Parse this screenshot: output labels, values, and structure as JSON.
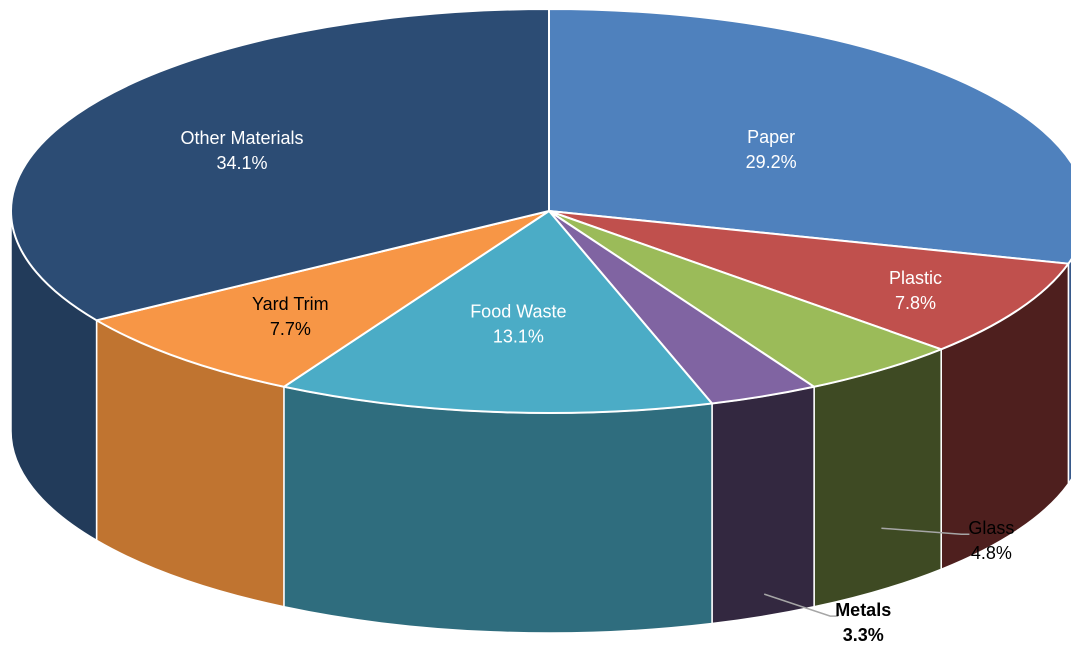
{
  "chart_data": {
    "type": "pie",
    "style": "3d-tilted",
    "title": "",
    "slices": [
      {
        "name": "Paper",
        "value": 29.2,
        "value_label": "29.2%",
        "color": "#4F81BD",
        "side_color": "#37598A"
      },
      {
        "name": "Plastic",
        "value": 7.8,
        "value_label": "7.8%",
        "color": "#C0504D",
        "side_color": "#4E1F1E"
      },
      {
        "name": "Glass",
        "value": 4.8,
        "value_label": "4.8%",
        "color": "#9BBB59",
        "side_color": "#3E4A23"
      },
      {
        "name": "Metals",
        "value": 3.3,
        "value_label": "3.3%",
        "color": "#8064A2",
        "side_color": "#332840"
      },
      {
        "name": "Food Waste",
        "value": 13.1,
        "value_label": "13.1%",
        "color": "#4BACC6",
        "side_color": "#2F6D7E"
      },
      {
        "name": "Yard Trim",
        "value": 7.7,
        "value_label": "7.7%",
        "color": "#F79646",
        "side_color": "#C07430"
      },
      {
        "name": "Other Materials",
        "value": 34.1,
        "value_label": "34.1%",
        "color": "#2C4C74",
        "side_color": "#223B5A"
      }
    ],
    "start_angle_deg": 0,
    "direction": "clockwise",
    "label_colors": {
      "inside": "#ffffff",
      "inside_dark": "#000000",
      "outside": "#000000"
    }
  }
}
